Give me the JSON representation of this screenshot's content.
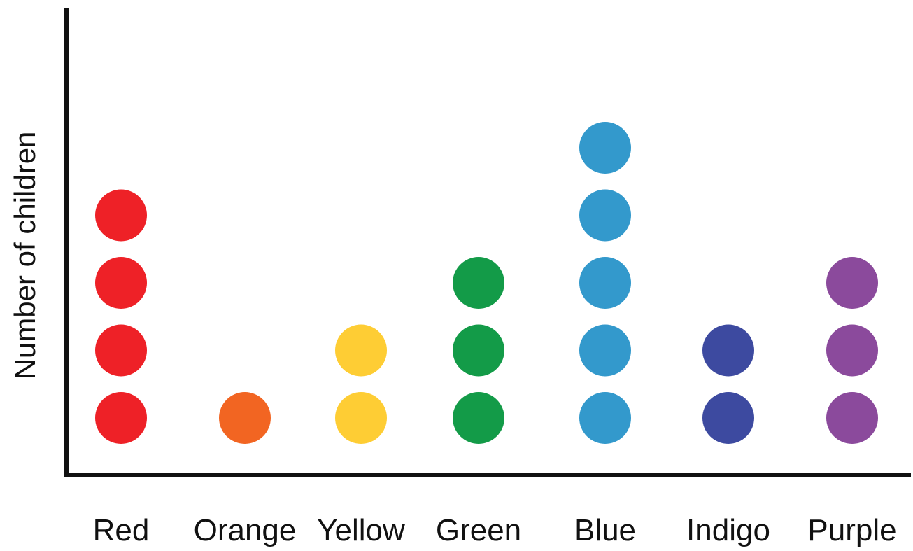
{
  "chart_data": {
    "type": "scatter",
    "categories": [
      "Red",
      "Orange",
      "Yellow",
      "Green",
      "Blue",
      "Indigo",
      "Purple"
    ],
    "values": [
      4,
      1,
      2,
      3,
      5,
      2,
      3
    ],
    "colors": [
      "#ee2127",
      "#f26522",
      "#fecd34",
      "#139b48",
      "#3399cc",
      "#3d4aa0",
      "#8b4a9c"
    ],
    "ylabel": "Number of children",
    "xlabel": "",
    "title": "",
    "ylim": [
      0,
      6
    ],
    "grid": false
  }
}
